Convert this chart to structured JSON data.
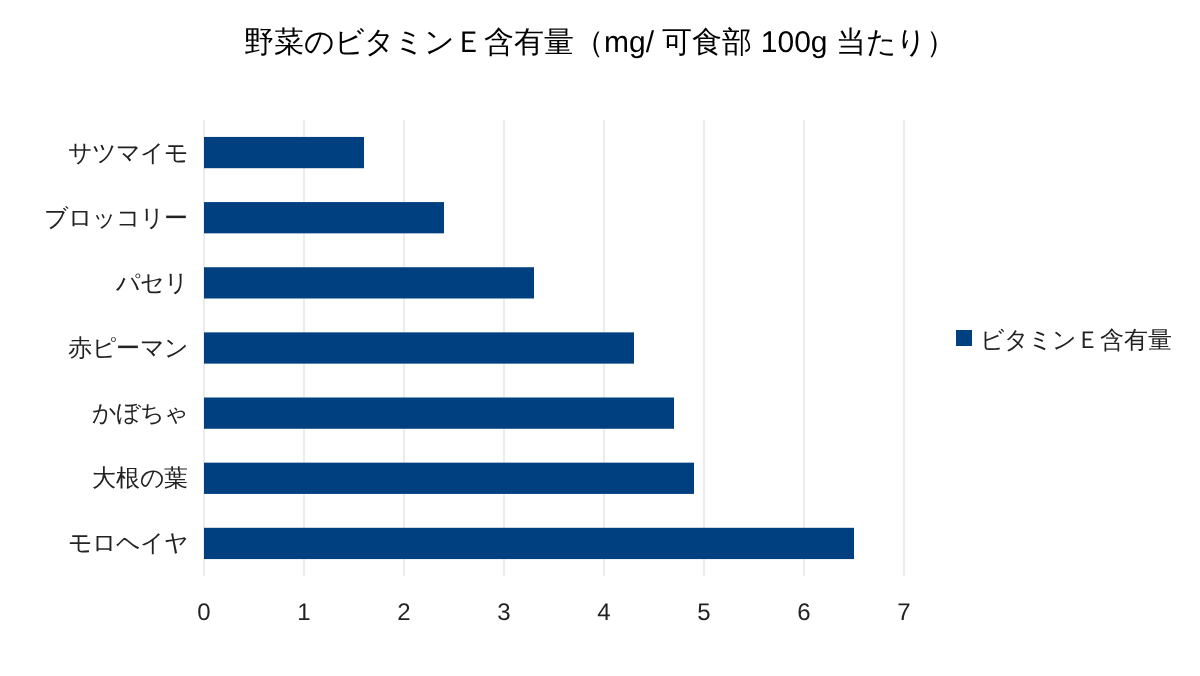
{
  "chart_data": {
    "type": "bar",
    "orientation": "horizontal",
    "title": "野菜のビタミンＥ含有量（mg/ 可食部 100g 当たり）",
    "categories": [
      "サツマイモ",
      "ブロッコリー",
      "パセリ",
      "赤ピーマン",
      "かぼちゃ",
      "大根の葉",
      "モロヘイヤ"
    ],
    "series": [
      {
        "name": "ビタミンＥ含有量",
        "color": "#004080",
        "values": [
          1.6,
          2.4,
          3.3,
          4.3,
          4.7,
          4.9,
          6.5
        ]
      }
    ],
    "xlim": [
      0,
      7
    ],
    "xticks": [
      0,
      1,
      2,
      3,
      4,
      5,
      6,
      7
    ],
    "grid": "x",
    "legend": "right"
  }
}
